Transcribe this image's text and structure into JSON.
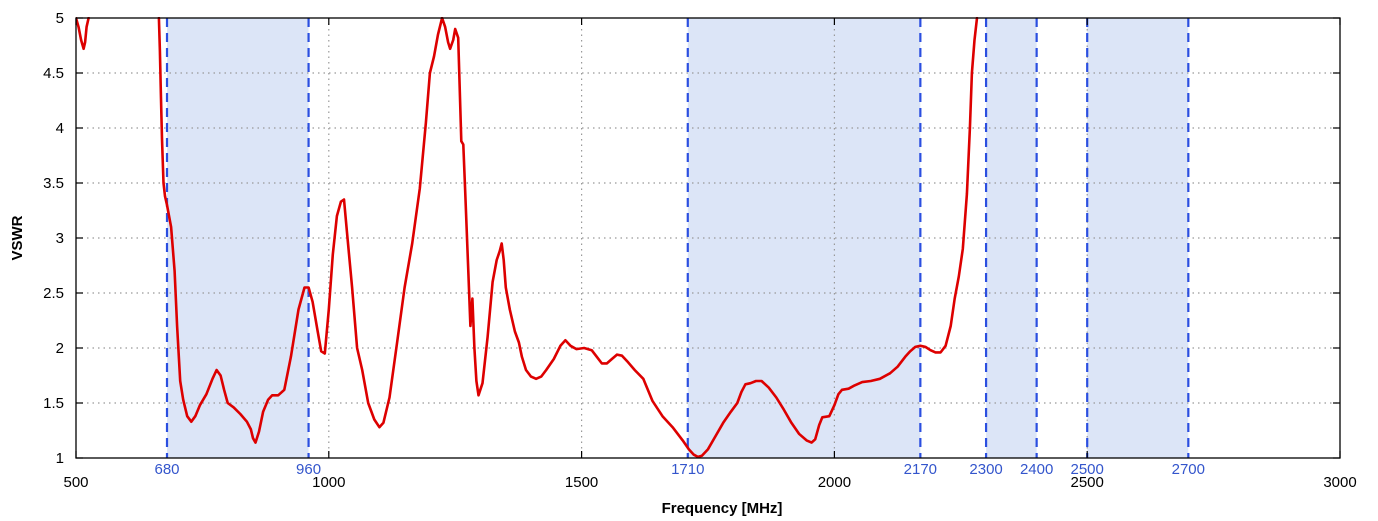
{
  "chart_data": {
    "type": "line",
    "title": "",
    "xlabel": "Frequency [MHz]",
    "ylabel": "VSWR",
    "xlim": [
      500,
      3000
    ],
    "ylim": [
      1,
      5
    ],
    "x_ticks": [
      500,
      1000,
      1500,
      2000,
      2500,
      3000
    ],
    "y_ticks": [
      1,
      1.5,
      2,
      2.5,
      3,
      3.5,
      4,
      4.5,
      5
    ],
    "grid": true,
    "legend": "none",
    "colors": {
      "line": "#dd0000",
      "band_fill": "#dce5f7",
      "band_edge": "#2b4fe0",
      "band_label": "#3355cc",
      "grid": "#999999"
    },
    "bands": [
      {
        "start": 680,
        "end": 960,
        "start_label": "680",
        "end_label": "960"
      },
      {
        "start": 1710,
        "end": 2170,
        "start_label": "1710",
        "end_label": "2170"
      },
      {
        "start": 2300,
        "end": 2400,
        "start_label": "2300",
        "end_label": "2400"
      },
      {
        "start": 2500,
        "end": 2700,
        "start_label": "2500",
        "end_label": "2700"
      }
    ],
    "series": [
      {
        "segments": [
          [
            [
              500,
              5.0
            ],
            [
              505,
              4.92
            ],
            [
              510,
              4.8
            ],
            [
              515,
              4.72
            ],
            [
              518,
              4.78
            ],
            [
              521,
              4.92
            ],
            [
              525,
              5.0
            ]
          ],
          [
            [
              664,
              5.0
            ],
            [
              666,
              4.7
            ],
            [
              668,
              4.3
            ],
            [
              670,
              3.9
            ],
            [
              673,
              3.5
            ],
            [
              676,
              3.38
            ],
            [
              680,
              3.3
            ],
            [
              688,
              3.1
            ],
            [
              695,
              2.7
            ],
            [
              700,
              2.2
            ],
            [
              706,
              1.7
            ],
            [
              712,
              1.53
            ],
            [
              720,
              1.38
            ],
            [
              728,
              1.33
            ],
            [
              736,
              1.38
            ],
            [
              745,
              1.48
            ],
            [
              758,
              1.58
            ],
            [
              770,
              1.72
            ],
            [
              778,
              1.8
            ],
            [
              786,
              1.75
            ],
            [
              793,
              1.62
            ],
            [
              800,
              1.5
            ],
            [
              812,
              1.46
            ],
            [
              825,
              1.4
            ],
            [
              838,
              1.33
            ],
            [
              846,
              1.26
            ],
            [
              850,
              1.18
            ],
            [
              855,
              1.14
            ],
            [
              862,
              1.24
            ],
            [
              870,
              1.42
            ],
            [
              880,
              1.53
            ],
            [
              888,
              1.57
            ],
            [
              900,
              1.57
            ],
            [
              912,
              1.62
            ],
            [
              925,
              1.92
            ],
            [
              940,
              2.35
            ],
            [
              952,
              2.55
            ],
            [
              960,
              2.55
            ],
            [
              968,
              2.42
            ],
            [
              978,
              2.15
            ],
            [
              985,
              1.97
            ],
            [
              992,
              1.95
            ],
            [
              1000,
              2.35
            ],
            [
              1008,
              2.85
            ],
            [
              1016,
              3.2
            ],
            [
              1024,
              3.33
            ],
            [
              1030,
              3.35
            ],
            [
              1036,
              3.05
            ],
            [
              1046,
              2.55
            ],
            [
              1056,
              2.0
            ],
            [
              1066,
              1.8
            ],
            [
              1078,
              1.5
            ],
            [
              1090,
              1.35
            ],
            [
              1100,
              1.28
            ],
            [
              1108,
              1.32
            ],
            [
              1120,
              1.55
            ],
            [
              1135,
              2.05
            ],
            [
              1150,
              2.55
            ],
            [
              1165,
              2.95
            ],
            [
              1180,
              3.45
            ],
            [
              1192,
              4.05
            ],
            [
              1200,
              4.5
            ],
            [
              1208,
              4.65
            ],
            [
              1216,
              4.85
            ],
            [
              1224,
              5.0
            ],
            [
              1230,
              4.92
            ],
            [
              1236,
              4.78
            ],
            [
              1240,
              4.72
            ],
            [
              1246,
              4.8
            ],
            [
              1250,
              4.9
            ],
            [
              1256,
              4.82
            ],
            [
              1262,
              3.88
            ],
            [
              1266,
              3.85
            ],
            [
              1270,
              3.4
            ],
            [
              1276,
              2.7
            ],
            [
              1280,
              2.2
            ],
            [
              1284,
              2.45
            ],
            [
              1288,
              2.0
            ],
            [
              1292,
              1.7
            ],
            [
              1296,
              1.57
            ],
            [
              1304,
              1.68
            ],
            [
              1314,
              2.1
            ],
            [
              1324,
              2.6
            ],
            [
              1332,
              2.8
            ],
            [
              1338,
              2.88
            ],
            [
              1342,
              2.95
            ],
            [
              1346,
              2.8
            ],
            [
              1350,
              2.55
            ],
            [
              1358,
              2.35
            ],
            [
              1368,
              2.15
            ],
            [
              1376,
              2.05
            ],
            [
              1382,
              1.92
            ],
            [
              1390,
              1.8
            ],
            [
              1400,
              1.74
            ],
            [
              1410,
              1.72
            ],
            [
              1420,
              1.74
            ],
            [
              1430,
              1.8
            ],
            [
              1445,
              1.9
            ],
            [
              1458,
              2.02
            ],
            [
              1468,
              2.07
            ],
            [
              1478,
              2.02
            ],
            [
              1490,
              1.99
            ],
            [
              1505,
              2.0
            ],
            [
              1520,
              1.98
            ],
            [
              1530,
              1.92
            ],
            [
              1540,
              1.86
            ],
            [
              1550,
              1.86
            ],
            [
              1560,
              1.9
            ],
            [
              1570,
              1.94
            ],
            [
              1580,
              1.93
            ],
            [
              1592,
              1.87
            ],
            [
              1605,
              1.8
            ],
            [
              1622,
              1.72
            ],
            [
              1640,
              1.52
            ],
            [
              1660,
              1.38
            ],
            [
              1680,
              1.28
            ],
            [
              1700,
              1.16
            ],
            [
              1712,
              1.08
            ],
            [
              1722,
              1.03
            ],
            [
              1730,
              1.01
            ],
            [
              1738,
              1.02
            ],
            [
              1750,
              1.08
            ],
            [
              1765,
              1.2
            ],
            [
              1780,
              1.32
            ],
            [
              1795,
              1.42
            ],
            [
              1808,
              1.5
            ],
            [
              1816,
              1.6
            ],
            [
              1824,
              1.67
            ],
            [
              1834,
              1.68
            ],
            [
              1845,
              1.7
            ],
            [
              1856,
              1.7
            ],
            [
              1870,
              1.64
            ],
            [
              1885,
              1.55
            ],
            [
              1900,
              1.44
            ],
            [
              1915,
              1.32
            ],
            [
              1930,
              1.22
            ],
            [
              1945,
              1.16
            ],
            [
              1955,
              1.14
            ],
            [
              1962,
              1.17
            ],
            [
              1970,
              1.3
            ],
            [
              1976,
              1.37
            ],
            [
              1990,
              1.38
            ],
            [
              2000,
              1.48
            ],
            [
              2008,
              1.58
            ],
            [
              2015,
              1.62
            ],
            [
              2028,
              1.63
            ],
            [
              2040,
              1.66
            ],
            [
              2055,
              1.69
            ],
            [
              2072,
              1.7
            ],
            [
              2090,
              1.72
            ],
            [
              2110,
              1.77
            ],
            [
              2125,
              1.83
            ],
            [
              2140,
              1.92
            ],
            [
              2150,
              1.97
            ],
            [
              2160,
              2.01
            ],
            [
              2170,
              2.02
            ],
            [
              2180,
              2.01
            ],
            [
              2190,
              1.98
            ],
            [
              2200,
              1.96
            ],
            [
              2210,
              1.96
            ],
            [
              2220,
              2.02
            ],
            [
              2230,
              2.2
            ],
            [
              2238,
              2.45
            ],
            [
              2246,
              2.65
            ],
            [
              2254,
              2.9
            ],
            [
              2262,
              3.4
            ],
            [
              2268,
              4.0
            ],
            [
              2272,
              4.5
            ],
            [
              2277,
              4.8
            ],
            [
              2282,
              5.0
            ]
          ]
        ]
      }
    ]
  }
}
